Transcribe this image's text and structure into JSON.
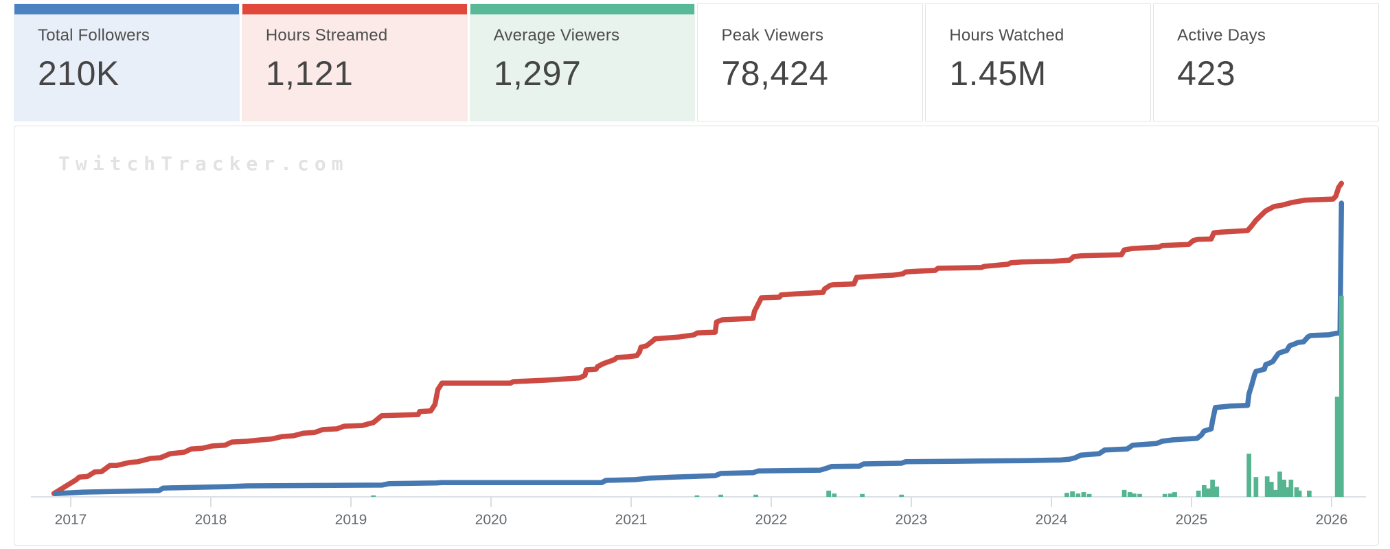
{
  "cards": [
    {
      "label": "Total Followers",
      "value": "210K",
      "accent_color": "#4a82c2",
      "bg_color": "#e9eff8"
    },
    {
      "label": "Hours Streamed",
      "value": "1,121",
      "accent_color": "#e1483c",
      "bg_color": "#fbeae8"
    },
    {
      "label": "Average Viewers",
      "value": "1,297",
      "accent_color": "#57b997",
      "bg_color": "#e8f3ee"
    },
    {
      "label": "Peak Viewers",
      "value": "78,424",
      "accent_color": "",
      "bg_color": "#ffffff"
    },
    {
      "label": "Hours Watched",
      "value": "1.45M",
      "accent_color": "",
      "bg_color": "#ffffff"
    },
    {
      "label": "Active Days",
      "value": "423",
      "accent_color": "",
      "bg_color": "#ffffff"
    }
  ],
  "watermark_text": "TwitchTracker.com",
  "chart_data": {
    "type": "line",
    "title": "",
    "xlabel": "",
    "ylabel": "",
    "x_ticks": [
      2017,
      2018,
      2019,
      2020,
      2021,
      2022,
      2023,
      2024,
      2025,
      2026
    ],
    "x_range": [
      2016.6,
      2026.35
    ],
    "y_unit": "percent_of_plot_height",
    "y_range": [
      0,
      100
    ],
    "grid": false,
    "legend": "none",
    "axis_color": "#dbe1e7",
    "tick_color": "#d9dee3",
    "tick_label_color": "#64696e",
    "series": [
      {
        "name": "red-line",
        "type": "line",
        "color": "#cd4a43",
        "points": [
          [
            2016.88,
            0.9
          ],
          [
            2016.96,
            2.8
          ],
          [
            2017.04,
            4.7
          ],
          [
            2017.06,
            5.4
          ],
          [
            2017.12,
            5.6
          ],
          [
            2017.17,
            6.8
          ],
          [
            2017.22,
            6.9
          ],
          [
            2017.28,
            8.6
          ],
          [
            2017.33,
            8.6
          ],
          [
            2017.42,
            9.4
          ],
          [
            2017.48,
            9.6
          ],
          [
            2017.57,
            10.5
          ],
          [
            2017.64,
            10.7
          ],
          [
            2017.71,
            11.8
          ],
          [
            2017.81,
            12.2
          ],
          [
            2017.86,
            13.1
          ],
          [
            2017.94,
            13.3
          ],
          [
            2018.01,
            13.9
          ],
          [
            2018.1,
            14.1
          ],
          [
            2018.15,
            15.0
          ],
          [
            2018.26,
            15.2
          ],
          [
            2018.36,
            15.6
          ],
          [
            2018.43,
            15.8
          ],
          [
            2018.51,
            16.5
          ],
          [
            2018.59,
            16.7
          ],
          [
            2018.66,
            17.4
          ],
          [
            2018.74,
            17.6
          ],
          [
            2018.8,
            18.4
          ],
          [
            2018.9,
            18.6
          ],
          [
            2018.95,
            19.3
          ],
          [
            2019.08,
            19.5
          ],
          [
            2019.16,
            20.3
          ],
          [
            2019.22,
            22.2
          ],
          [
            2019.48,
            22.5
          ],
          [
            2019.49,
            23.3
          ],
          [
            2019.57,
            23.5
          ],
          [
            2019.6,
            25.3
          ],
          [
            2019.62,
            29.3
          ],
          [
            2019.65,
            31.1
          ],
          [
            2020.14,
            31.1
          ],
          [
            2020.16,
            31.5
          ],
          [
            2020.39,
            31.9
          ],
          [
            2020.63,
            32.5
          ],
          [
            2020.67,
            33.2
          ],
          [
            2020.68,
            34.7
          ],
          [
            2020.75,
            34.9
          ],
          [
            2020.76,
            35.6
          ],
          [
            2020.8,
            36.4
          ],
          [
            2020.88,
            37.5
          ],
          [
            2020.9,
            38.1
          ],
          [
            2020.98,
            38.3
          ],
          [
            2021.04,
            38.6
          ],
          [
            2021.06,
            39.6
          ],
          [
            2021.07,
            40.9
          ],
          [
            2021.11,
            41.3
          ],
          [
            2021.16,
            42.8
          ],
          [
            2021.17,
            43.2
          ],
          [
            2021.34,
            43.7
          ],
          [
            2021.45,
            44.3
          ],
          [
            2021.47,
            44.8
          ],
          [
            2021.6,
            45.0
          ],
          [
            2021.61,
            47.8
          ],
          [
            2021.65,
            48.4
          ],
          [
            2021.87,
            48.8
          ],
          [
            2021.88,
            50.7
          ],
          [
            2021.93,
            54.4
          ],
          [
            2022.06,
            54.6
          ],
          [
            2022.07,
            55.2
          ],
          [
            2022.17,
            55.5
          ],
          [
            2022.37,
            55.9
          ],
          [
            2022.38,
            56.8
          ],
          [
            2022.42,
            57.8
          ],
          [
            2022.44,
            58.0
          ],
          [
            2022.59,
            58.2
          ],
          [
            2022.61,
            60.0
          ],
          [
            2022.68,
            60.2
          ],
          [
            2022.87,
            60.6
          ],
          [
            2022.94,
            61.0
          ],
          [
            2022.96,
            61.5
          ],
          [
            2023.05,
            61.7
          ],
          [
            2023.17,
            61.9
          ],
          [
            2023.19,
            62.5
          ],
          [
            2023.5,
            62.7
          ],
          [
            2023.52,
            63.0
          ],
          [
            2023.69,
            63.6
          ],
          [
            2023.71,
            64.0
          ],
          [
            2023.79,
            64.2
          ],
          [
            2024.01,
            64.4
          ],
          [
            2024.13,
            64.7
          ],
          [
            2024.16,
            65.7
          ],
          [
            2024.21,
            65.9
          ],
          [
            2024.5,
            66.2
          ],
          [
            2024.52,
            67.5
          ],
          [
            2024.58,
            67.9
          ],
          [
            2024.77,
            68.3
          ],
          [
            2024.79,
            68.7
          ],
          [
            2024.98,
            69.0
          ],
          [
            2025.01,
            70.0
          ],
          [
            2025.04,
            70.4
          ],
          [
            2025.14,
            70.5
          ],
          [
            2025.16,
            72.2
          ],
          [
            2025.22,
            72.4
          ],
          [
            2025.4,
            72.8
          ],
          [
            2025.43,
            74.1
          ],
          [
            2025.46,
            75.6
          ],
          [
            2025.5,
            77.1
          ],
          [
            2025.53,
            78.2
          ],
          [
            2025.59,
            79.4
          ],
          [
            2025.64,
            79.7
          ],
          [
            2025.72,
            80.5
          ],
          [
            2025.81,
            81.1
          ],
          [
            2025.86,
            81.2
          ],
          [
            2026.01,
            81.4
          ],
          [
            2026.03,
            82.2
          ],
          [
            2026.05,
            84.6
          ],
          [
            2026.07,
            85.7
          ]
        ]
      },
      {
        "name": "blue-line",
        "type": "line",
        "color": "#4678b2",
        "points": [
          [
            2016.89,
            0.9
          ],
          [
            2017.09,
            1.3
          ],
          [
            2017.63,
            1.7
          ],
          [
            2017.66,
            2.4
          ],
          [
            2018.12,
            2.8
          ],
          [
            2018.26,
            3.0
          ],
          [
            2019.22,
            3.2
          ],
          [
            2019.27,
            3.6
          ],
          [
            2019.61,
            3.8
          ],
          [
            2019.65,
            3.9
          ],
          [
            2020.79,
            3.9
          ],
          [
            2020.82,
            4.5
          ],
          [
            2021.03,
            4.7
          ],
          [
            2021.13,
            5.1
          ],
          [
            2021.3,
            5.4
          ],
          [
            2021.45,
            5.6
          ],
          [
            2021.6,
            5.8
          ],
          [
            2021.64,
            6.4
          ],
          [
            2021.87,
            6.6
          ],
          [
            2021.91,
            7.1
          ],
          [
            2022.35,
            7.3
          ],
          [
            2022.4,
            7.9
          ],
          [
            2022.43,
            8.3
          ],
          [
            2022.63,
            8.4
          ],
          [
            2022.66,
            9.0
          ],
          [
            2022.93,
            9.2
          ],
          [
            2022.96,
            9.6
          ],
          [
            2023.5,
            9.8
          ],
          [
            2023.82,
            9.9
          ],
          [
            2024.07,
            10.1
          ],
          [
            2024.13,
            10.3
          ],
          [
            2024.17,
            10.7
          ],
          [
            2024.21,
            11.4
          ],
          [
            2024.34,
            11.8
          ],
          [
            2024.38,
            12.8
          ],
          [
            2024.54,
            13.1
          ],
          [
            2024.58,
            14.1
          ],
          [
            2024.75,
            14.6
          ],
          [
            2024.79,
            15.2
          ],
          [
            2024.87,
            15.6
          ],
          [
            2025.04,
            16.0
          ],
          [
            2025.07,
            16.9
          ],
          [
            2025.09,
            18.0
          ],
          [
            2025.14,
            18.6
          ],
          [
            2025.15,
            20.8
          ],
          [
            2025.17,
            24.4
          ],
          [
            2025.27,
            24.8
          ],
          [
            2025.4,
            25.0
          ],
          [
            2025.41,
            28.1
          ],
          [
            2025.43,
            30.6
          ],
          [
            2025.45,
            33.4
          ],
          [
            2025.46,
            34.3
          ],
          [
            2025.52,
            34.9
          ],
          [
            2025.53,
            36.2
          ],
          [
            2025.56,
            36.6
          ],
          [
            2025.58,
            37.0
          ],
          [
            2025.6,
            38.1
          ],
          [
            2025.62,
            39.2
          ],
          [
            2025.63,
            39.4
          ],
          [
            2025.68,
            40.0
          ],
          [
            2025.7,
            41.3
          ],
          [
            2025.73,
            41.7
          ],
          [
            2025.76,
            42.2
          ],
          [
            2025.8,
            42.4
          ],
          [
            2025.83,
            43.7
          ],
          [
            2025.85,
            44.1
          ],
          [
            2025.98,
            44.3
          ],
          [
            2026.03,
            44.7
          ],
          [
            2026.06,
            44.8
          ],
          [
            2026.07,
            80.3
          ]
        ]
      },
      {
        "name": "green-bars",
        "type": "bar",
        "color": "#55b591",
        "bar_width_years": 0.033,
        "points": [
          [
            2019.16,
            0.4
          ],
          [
            2021.47,
            0.4
          ],
          [
            2021.64,
            0.6
          ],
          [
            2021.89,
            0.6
          ],
          [
            2022.41,
            1.7
          ],
          [
            2022.45,
            0.9
          ],
          [
            2022.65,
            0.8
          ],
          [
            2022.93,
            0.6
          ],
          [
            2024.11,
            1.1
          ],
          [
            2024.15,
            1.5
          ],
          [
            2024.19,
            0.9
          ],
          [
            2024.23,
            1.3
          ],
          [
            2024.27,
            0.8
          ],
          [
            2024.52,
            1.9
          ],
          [
            2024.56,
            1.3
          ],
          [
            2024.59,
            0.9
          ],
          [
            2024.63,
            0.8
          ],
          [
            2024.81,
            0.8
          ],
          [
            2024.85,
            0.9
          ],
          [
            2024.88,
            1.3
          ],
          [
            2025.05,
            1.7
          ],
          [
            2025.09,
            3.2
          ],
          [
            2025.12,
            2.3
          ],
          [
            2025.15,
            4.7
          ],
          [
            2025.18,
            2.8
          ],
          [
            2025.41,
            11.8
          ],
          [
            2025.46,
            5.4
          ],
          [
            2025.54,
            5.6
          ],
          [
            2025.57,
            4.1
          ],
          [
            2025.6,
            1.9
          ],
          [
            2025.63,
            6.9
          ],
          [
            2025.66,
            4.7
          ],
          [
            2025.68,
            2.6
          ],
          [
            2025.71,
            4.7
          ],
          [
            2025.75,
            2.6
          ],
          [
            2025.77,
            1.7
          ],
          [
            2025.84,
            1.7
          ],
          [
            2026.04,
            27.4
          ],
          [
            2026.07,
            55.0
          ]
        ]
      }
    ]
  }
}
